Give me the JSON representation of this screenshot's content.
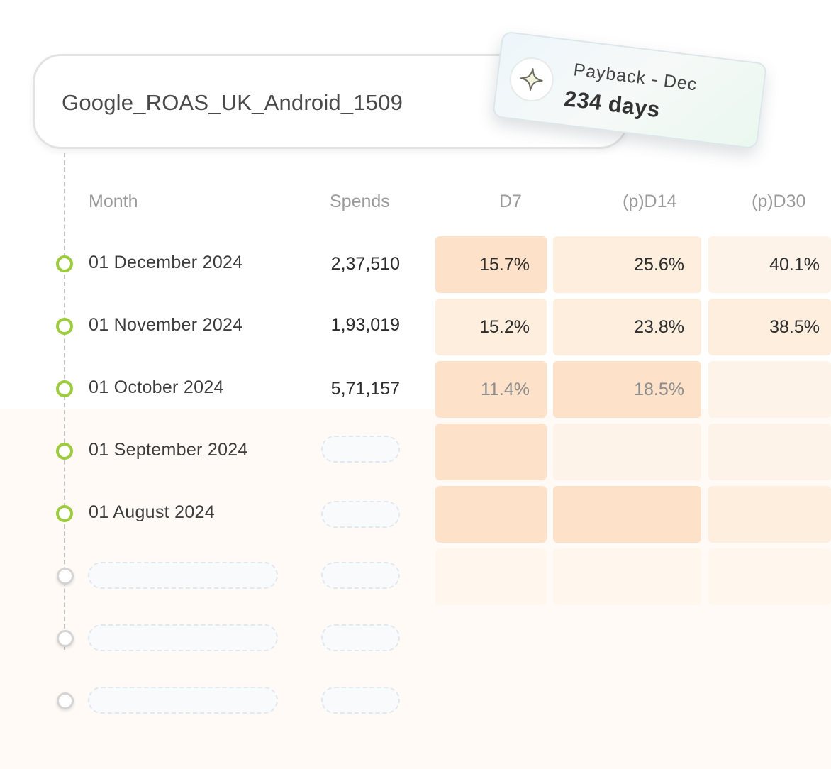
{
  "campaign": {
    "name": "Google_ROAS_UK_Android_1509"
  },
  "payback": {
    "title": "Payback - Dec",
    "value": "234 days",
    "icon": "sparkle-icon"
  },
  "table": {
    "headers": {
      "month": "Month",
      "spends": "Spends",
      "d7": "D7",
      "d14": "(p)D14",
      "d30": "(p)D30"
    },
    "rows": [
      {
        "month": "01 December 2024",
        "spends": "2,37,510",
        "d7": "15.7%",
        "d14": "25.6%",
        "d30": "40.1%"
      },
      {
        "month": "01 November 2024",
        "spends": "1,93,019",
        "d7": "15.2%",
        "d14": "23.8%",
        "d30": "38.5%"
      },
      {
        "month": "01 October 2024",
        "spends": "5,71,157",
        "d7": "11.4%",
        "d14": "18.5%",
        "d30": ""
      },
      {
        "month": "01 September 2024",
        "spends": "",
        "d7": "",
        "d14": "",
        "d30": ""
      },
      {
        "month": "01 August 2024",
        "spends": "",
        "d7": "",
        "d14": "",
        "d30": ""
      }
    ]
  },
  "colors": {
    "accent_green": "#9ccc3c",
    "cell_strong": "#fde2c9",
    "cell_mid": "#fdeede",
    "cell_light": "#fef3e8"
  }
}
